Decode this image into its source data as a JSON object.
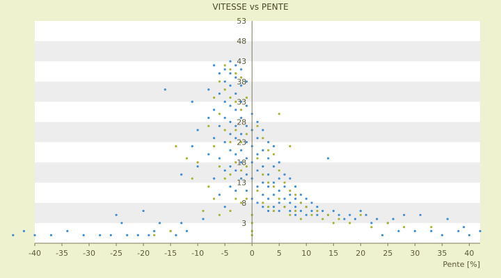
{
  "chart_data": {
    "type": "scatter",
    "title": "VITESSE vs PENTE",
    "xlabel": "Pente [%]",
    "ylabel": "",
    "xlim": [
      -40,
      42
    ],
    "ylim": [
      -2,
      53
    ],
    "x_ticks": [
      -40,
      -35,
      -30,
      -25,
      -20,
      -15,
      -10,
      -5,
      0,
      5,
      10,
      15,
      20,
      25,
      30,
      35,
      40
    ],
    "y_ticks": [
      3,
      8,
      13,
      18,
      23,
      28,
      33,
      38,
      43,
      48,
      53
    ],
    "y_tick_labels": [
      "3",
      "8",
      "13",
      "18",
      "23",
      "28",
      "33",
      "38",
      "43",
      "48",
      "53"
    ],
    "grid": "horizontal bands",
    "band_colors": [
      "#ffffff",
      "#ededed"
    ],
    "series": [
      {
        "color": "#3b8fd9",
        "values": [
          [
            -44,
            0
          ],
          [
            -42,
            1
          ],
          [
            -40,
            0
          ],
          [
            -37,
            0
          ],
          [
            -34,
            1
          ],
          [
            -31,
            0
          ],
          [
            -28,
            0
          ],
          [
            -26,
            0
          ],
          [
            -25,
            5
          ],
          [
            -24,
            3
          ],
          [
            -23,
            0
          ],
          [
            -21,
            0
          ],
          [
            -20,
            6
          ],
          [
            -19,
            0
          ],
          [
            -18,
            1
          ],
          [
            -17,
            3
          ],
          [
            -16,
            36
          ],
          [
            -15,
            1
          ],
          [
            -14,
            0
          ],
          [
            -13,
            3
          ],
          [
            -13,
            15
          ],
          [
            -12,
            1
          ],
          [
            -11,
            33
          ],
          [
            -11,
            22
          ],
          [
            -10,
            26
          ],
          [
            -10,
            17
          ],
          [
            -9,
            4
          ],
          [
            -8,
            36
          ],
          [
            -8,
            29
          ],
          [
            -8,
            20
          ],
          [
            -7,
            42
          ],
          [
            -7,
            31
          ],
          [
            -7,
            24
          ],
          [
            -7,
            14
          ],
          [
            -6,
            40
          ],
          [
            -6,
            35
          ],
          [
            -6,
            27
          ],
          [
            -6,
            19
          ],
          [
            -6,
            10
          ],
          [
            -5,
            41
          ],
          [
            -5,
            38
          ],
          [
            -5,
            33
          ],
          [
            -5,
            29
          ],
          [
            -5,
            23
          ],
          [
            -5,
            16
          ],
          [
            -5,
            7
          ],
          [
            -4,
            43
          ],
          [
            -4,
            40
          ],
          [
            -4,
            37
          ],
          [
            -4,
            32
          ],
          [
            -4,
            28
          ],
          [
            -4,
            25
          ],
          [
            -4,
            21
          ],
          [
            -4,
            17
          ],
          [
            -4,
            12
          ],
          [
            -3,
            42
          ],
          [
            -3,
            39
          ],
          [
            -3,
            35
          ],
          [
            -3,
            31
          ],
          [
            -3,
            27
          ],
          [
            -3,
            24
          ],
          [
            -3,
            20
          ],
          [
            -3,
            16
          ],
          [
            -3,
            11
          ],
          [
            -2,
            41
          ],
          [
            -2,
            37
          ],
          [
            -2,
            33
          ],
          [
            -2,
            29
          ],
          [
            -2,
            25
          ],
          [
            -2,
            21
          ],
          [
            -2,
            18
          ],
          [
            -2,
            14
          ],
          [
            -1,
            38
          ],
          [
            -1,
            32
          ],
          [
            -1,
            27
          ],
          [
            -1,
            23
          ],
          [
            -1,
            19
          ],
          [
            -1,
            15
          ],
          [
            -1,
            11
          ],
          [
            0,
            30
          ],
          [
            0,
            26
          ],
          [
            0,
            22
          ],
          [
            0,
            18
          ],
          [
            0,
            14
          ],
          [
            0,
            9
          ],
          [
            1,
            28
          ],
          [
            1,
            24
          ],
          [
            1,
            20
          ],
          [
            1,
            16
          ],
          [
            1,
            12
          ],
          [
            1,
            8
          ],
          [
            2,
            26
          ],
          [
            2,
            21
          ],
          [
            2,
            17
          ],
          [
            2,
            13
          ],
          [
            2,
            10
          ],
          [
            2,
            7
          ],
          [
            3,
            23
          ],
          [
            3,
            19
          ],
          [
            3,
            15
          ],
          [
            3,
            12
          ],
          [
            3,
            9
          ],
          [
            3,
            6
          ],
          [
            4,
            22
          ],
          [
            4,
            17
          ],
          [
            4,
            13
          ],
          [
            4,
            10
          ],
          [
            4,
            7
          ],
          [
            5,
            18
          ],
          [
            5,
            14
          ],
          [
            5,
            11
          ],
          [
            5,
            8
          ],
          [
            5,
            6
          ],
          [
            6,
            15
          ],
          [
            6,
            12
          ],
          [
            6,
            9
          ],
          [
            6,
            7
          ],
          [
            7,
            14
          ],
          [
            7,
            10
          ],
          [
            7,
            8
          ],
          [
            7,
            6
          ],
          [
            8,
            12
          ],
          [
            8,
            9
          ],
          [
            8,
            7
          ],
          [
            8,
            5
          ],
          [
            9,
            10
          ],
          [
            9,
            8
          ],
          [
            9,
            6
          ],
          [
            10,
            9
          ],
          [
            10,
            7
          ],
          [
            10,
            5
          ],
          [
            11,
            8
          ],
          [
            11,
            6
          ],
          [
            12,
            7
          ],
          [
            12,
            5
          ],
          [
            13,
            6
          ],
          [
            14,
            19
          ],
          [
            14,
            5
          ],
          [
            15,
            6
          ],
          [
            16,
            5
          ],
          [
            17,
            4
          ],
          [
            18,
            5
          ],
          [
            19,
            4
          ],
          [
            20,
            6
          ],
          [
            21,
            5
          ],
          [
            22,
            3
          ],
          [
            23,
            4
          ],
          [
            24,
            0
          ],
          [
            25,
            3
          ],
          [
            26,
            4
          ],
          [
            27,
            1
          ],
          [
            28,
            5
          ],
          [
            30,
            1
          ],
          [
            31,
            5
          ],
          [
            33,
            1
          ],
          [
            35,
            0
          ],
          [
            36,
            4
          ],
          [
            38,
            1
          ],
          [
            39,
            2
          ],
          [
            40,
            0
          ],
          [
            42,
            1
          ]
        ]
      },
      {
        "color": "#a9b32c",
        "values": [
          [
            -18,
            0
          ],
          [
            -15,
            1
          ],
          [
            -14,
            22
          ],
          [
            -12,
            19
          ],
          [
            -11,
            14
          ],
          [
            -10,
            18
          ],
          [
            -9,
            6
          ],
          [
            -8,
            27
          ],
          [
            -8,
            12
          ],
          [
            -7,
            34
          ],
          [
            -7,
            22
          ],
          [
            -7,
            9
          ],
          [
            -6,
            38
          ],
          [
            -6,
            30
          ],
          [
            -6,
            17
          ],
          [
            -6,
            5
          ],
          [
            -5,
            42
          ],
          [
            -5,
            36
          ],
          [
            -5,
            26
          ],
          [
            -5,
            14
          ],
          [
            -4,
            41
          ],
          [
            -4,
            34
          ],
          [
            -4,
            23
          ],
          [
            -4,
            15
          ],
          [
            -4,
            6
          ],
          [
            -3,
            40
          ],
          [
            -3,
            33
          ],
          [
            -3,
            26
          ],
          [
            -3,
            18
          ],
          [
            -3,
            9
          ],
          [
            -2,
            39
          ],
          [
            -2,
            31
          ],
          [
            -2,
            23
          ],
          [
            -2,
            16
          ],
          [
            -2,
            8
          ],
          [
            -1,
            34
          ],
          [
            -1,
            25
          ],
          [
            -1,
            17
          ],
          [
            -1,
            9
          ],
          [
            0,
            3
          ],
          [
            0,
            1
          ],
          [
            0,
            5
          ],
          [
            0,
            0
          ],
          [
            1,
            27
          ],
          [
            1,
            19
          ],
          [
            1,
            11
          ],
          [
            2,
            24
          ],
          [
            2,
            15
          ],
          [
            2,
            8
          ],
          [
            3,
            21
          ],
          [
            3,
            13
          ],
          [
            3,
            7
          ],
          [
            4,
            20
          ],
          [
            4,
            12
          ],
          [
            4,
            6
          ],
          [
            5,
            30
          ],
          [
            5,
            16
          ],
          [
            5,
            9
          ],
          [
            6,
            13
          ],
          [
            6,
            7
          ],
          [
            7,
            22
          ],
          [
            7,
            11
          ],
          [
            7,
            5
          ],
          [
            8,
            10
          ],
          [
            8,
            6
          ],
          [
            9,
            8
          ],
          [
            9,
            4
          ],
          [
            10,
            7
          ],
          [
            11,
            5
          ],
          [
            12,
            6
          ],
          [
            13,
            4
          ],
          [
            14,
            5
          ],
          [
            15,
            3
          ],
          [
            16,
            4
          ],
          [
            18,
            3
          ],
          [
            20,
            5
          ],
          [
            22,
            2
          ],
          [
            25,
            3
          ],
          [
            28,
            2
          ],
          [
            33,
            2
          ]
        ]
      }
    ]
  }
}
